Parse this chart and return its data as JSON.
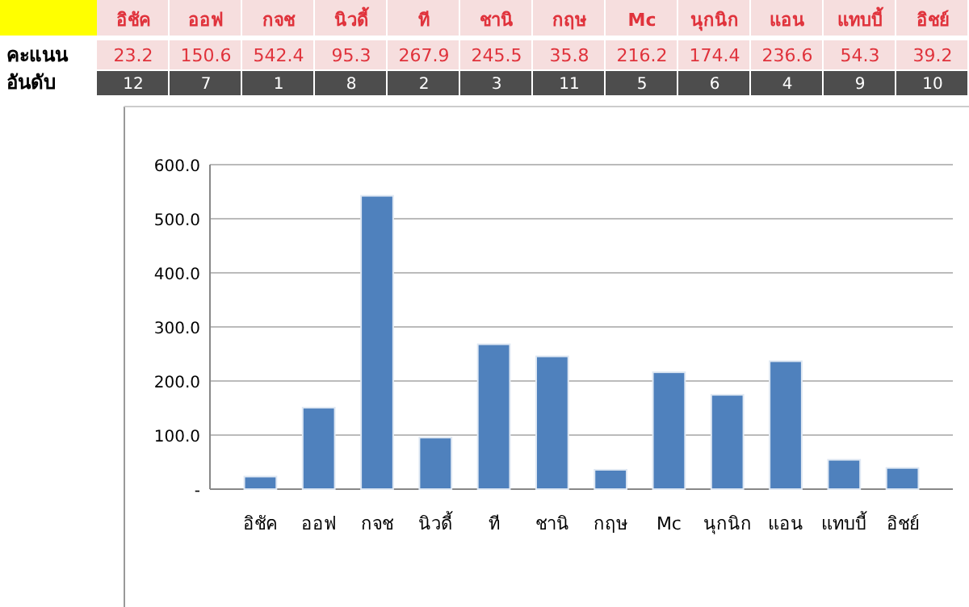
{
  "chart_data": {
    "type": "bar",
    "categories": [
      "อิชัค",
      "ออฟ",
      "กจช",
      "นิวดี้",
      "ที",
      "ชานิ",
      "กฤษ",
      "Mc",
      "นุกนิก",
      "แอน",
      "แทบบี้",
      "อิชย์"
    ],
    "series": [
      {
        "color": "#4f81bd",
        "values": [
          23.2,
          150.6,
          542.4,
          95.3,
          267.9,
          245.5,
          35.8,
          216.2,
          174.4,
          236.6,
          54.3,
          39.2
        ]
      }
    ],
    "ylim": [
      0,
      600
    ],
    "yticks": [
      {
        "value": 0,
        "label": "-"
      },
      {
        "value": 100,
        "label": "100.0"
      },
      {
        "value": 200,
        "label": "200.0"
      },
      {
        "value": 300,
        "label": "300.0"
      },
      {
        "value": 400,
        "label": "400.0"
      },
      {
        "value": 500,
        "label": "500.0"
      },
      {
        "value": 600,
        "label": "600.0"
      }
    ],
    "grid": "y",
    "annotations": [
      "คะแนน",
      "23.2",
      "150.6",
      "542.4",
      "95.3",
      "267.9",
      "245.5",
      "35.8",
      "216.2",
      "174.4",
      "236.6",
      "54.3",
      "39.2",
      "อันดับ",
      "12",
      "7",
      "1",
      "8",
      "2",
      "3",
      "11",
      "5",
      "6",
      "4",
      "9",
      "10"
    ]
  }
}
